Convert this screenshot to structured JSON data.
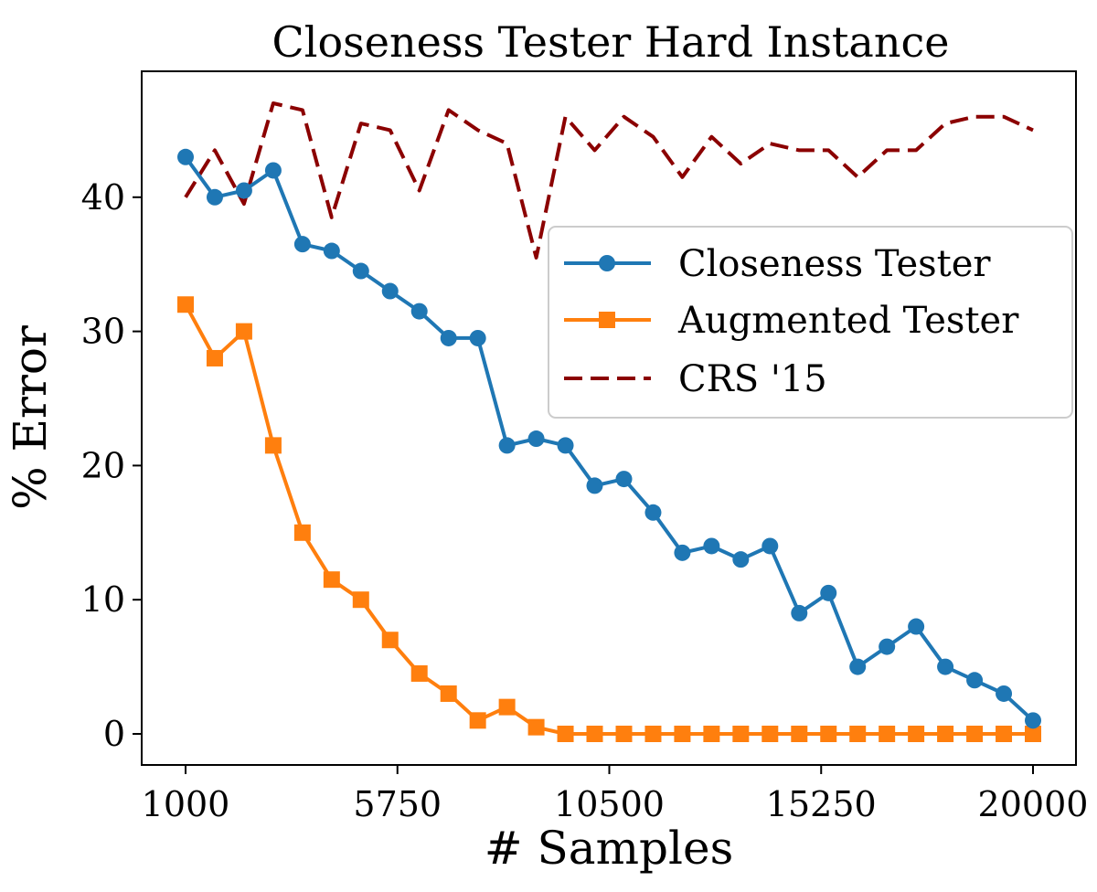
{
  "chart_data": {
    "type": "line",
    "title": "Closeness Tester Hard Instance",
    "xlabel": "# Samples",
    "ylabel": "% Error",
    "xlim": [
      0,
      20000
    ],
    "ylim": [
      0,
      48
    ],
    "xticks": [
      1000,
      5750,
      10500,
      15250,
      20000
    ],
    "xtick_labels": [
      "1000",
      "5750",
      "10500",
      "15250",
      "20000"
    ],
    "yticks": [
      0,
      10,
      20,
      30,
      40
    ],
    "ytick_labels": [
      "0",
      "10",
      "20",
      "30",
      "40"
    ],
    "grid": false,
    "legend_position": "center-right",
    "x": [
      1000,
      1655,
      2310,
      2966,
      3621,
      4276,
      4931,
      5586,
      6241,
      6897,
      7552,
      8207,
      8862,
      9517,
      10172,
      10828,
      11483,
      12138,
      12793,
      13448,
      14103,
      14759,
      15414,
      16069,
      16724,
      17379,
      18034,
      18690,
      19345,
      20000
    ],
    "series": [
      {
        "name": "Closeness Tester",
        "color": "#1f77b4",
        "marker": "circle",
        "line_style": "solid",
        "values": [
          43,
          40,
          40.5,
          42,
          36.5,
          36,
          34.5,
          33,
          31.5,
          29.5,
          29.5,
          21.5,
          22,
          21.5,
          18.5,
          19,
          16.5,
          13.5,
          14,
          13,
          14,
          9,
          10.5,
          5,
          6.5,
          8,
          5,
          4,
          3,
          1
        ]
      },
      {
        "name": "Augmented Tester",
        "color": "#ff7f0e",
        "marker": "square",
        "line_style": "solid",
        "values": [
          32,
          28,
          30,
          21.5,
          15,
          11.5,
          10,
          7,
          4.5,
          3,
          1,
          2,
          0.5,
          0,
          0,
          0,
          0,
          0,
          0,
          0,
          0,
          0,
          0,
          0,
          0,
          0,
          0,
          0,
          0,
          0
        ]
      },
      {
        "name": "CRS '15",
        "color": "#8b0000",
        "marker": "none",
        "line_style": "dashed",
        "values": [
          40,
          43.5,
          39.5,
          47,
          46.5,
          38.5,
          45.5,
          45,
          40.5,
          46.5,
          45,
          44,
          35.5,
          46,
          43.5,
          46,
          44.5,
          41.5,
          44.5,
          42.5,
          44,
          43.5,
          43.5,
          41.5,
          43.5,
          43.5,
          45.5,
          46,
          46,
          45
        ]
      }
    ]
  }
}
